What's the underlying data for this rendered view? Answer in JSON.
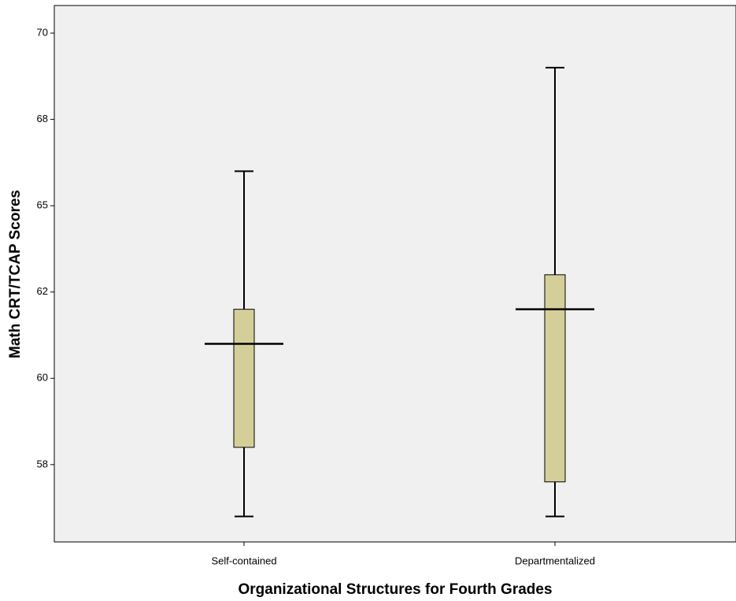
{
  "chart_data": {
    "type": "box",
    "x_label": "Organizational Structures for Fourth Grades",
    "y_label": "Math CRT/TCAP Scores",
    "categories": [
      "Self-contained",
      "Departmentalized"
    ],
    "min": [
      56,
      56
    ],
    "q1": [
      58,
      57
    ],
    "median": [
      61,
      62
    ],
    "q3": [
      62,
      63
    ],
    "max": [
      66,
      69
    ],
    "color": "#d4cf98",
    "ylim": [
      55.26,
      70.8
    ],
    "yticks": [
      {
        "value": 57.5,
        "label": "58"
      },
      60,
      {
        "value": 62.5,
        "label": "62"
      },
      65,
      {
        "value": 67.5,
        "label": "68"
      },
      70
    ]
  }
}
